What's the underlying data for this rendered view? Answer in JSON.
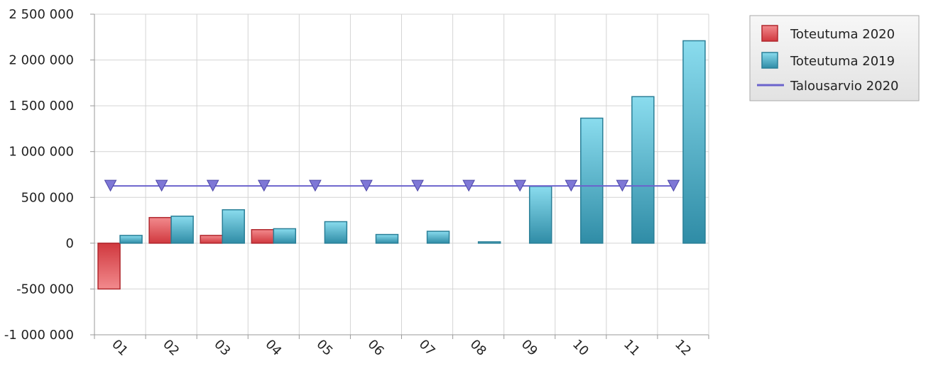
{
  "chart_data": {
    "type": "bar",
    "categories": [
      "01",
      "02",
      "03",
      "04",
      "05",
      "06",
      "07",
      "08",
      "09",
      "10",
      "11",
      "12"
    ],
    "series": [
      {
        "name": "Toteutuma 2020",
        "kind": "bar",
        "color": "#d94b50",
        "values": [
          -500000,
          280000,
          85000,
          148000,
          null,
          null,
          null,
          null,
          null,
          null,
          null,
          null
        ]
      },
      {
        "name": "Toteutuma 2019",
        "kind": "bar",
        "color": "#3aa9c4",
        "values": [
          85000,
          295000,
          365000,
          158000,
          235000,
          95000,
          130000,
          15000,
          620000,
          1365000,
          1600000,
          2210000
        ]
      },
      {
        "name": "Talousarvio 2020",
        "kind": "line",
        "color": "#6b63cc",
        "values": [
          625000,
          625000,
          625000,
          625000,
          625000,
          625000,
          625000,
          625000,
          625000,
          625000,
          625000,
          625000
        ]
      }
    ],
    "yticks": [
      "2 500 000",
      "2 000 000",
      "1 500 000",
      "1 000 000",
      "500 000",
      "0",
      "-500 000",
      "-1 000 000"
    ],
    "ylim": [
      -1000000,
      2500000
    ],
    "grid": true,
    "legend_position": "top-right"
  }
}
